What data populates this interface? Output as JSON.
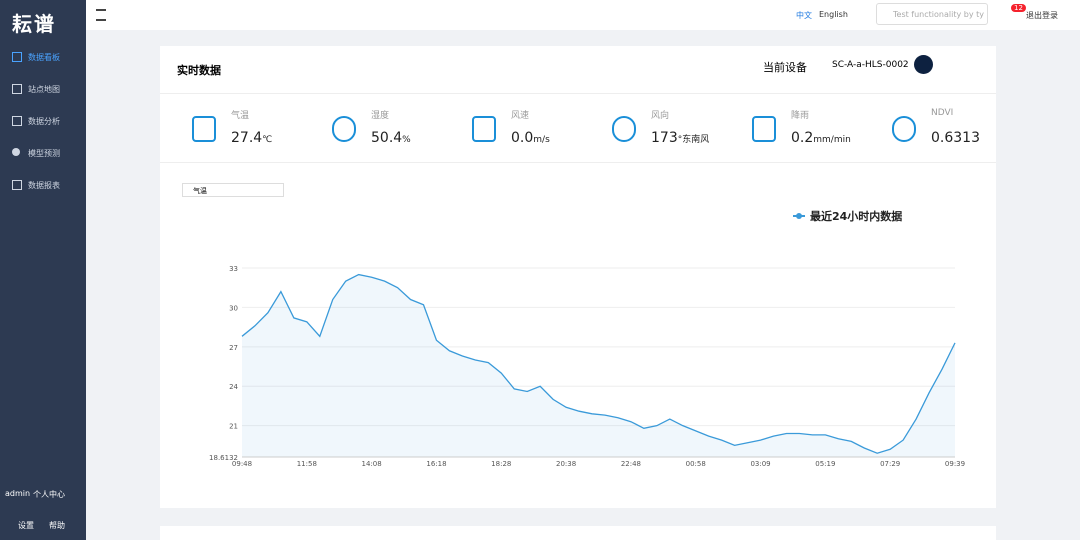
{
  "sidebar": {
    "logo": "耘谱",
    "menu": [
      "数据看板",
      "站点地图",
      "数据分析",
      "模型预测",
      "数据报表"
    ],
    "user": "admin",
    "profile": "个人中心",
    "settings": "设置",
    "help": "帮助"
  },
  "header": {
    "lang_cn": "中文",
    "lang_en": "English",
    "search_placeholder": "Test functionality by ty",
    "badge": "12",
    "logout": "退出登录"
  },
  "card": {
    "title": "实时数据",
    "device_label": "当前设备",
    "device": "SC-A-a-HLS-0002",
    "select": "气温",
    "metrics": [
      {
        "label": "气温",
        "value": "27.4",
        "unit": "℃"
      },
      {
        "label": "湿度",
        "value": "50.4",
        "unit": "%"
      },
      {
        "label": "风速",
        "value": "0.0",
        "unit": "m/s"
      },
      {
        "label": "风向",
        "value": "173",
        "unit": "°东南风"
      },
      {
        "label": "降雨",
        "value": "0.2",
        "unit": "mm/min"
      },
      {
        "label": "NDVI",
        "value": "0.6313",
        "unit": ""
      }
    ]
  },
  "chart_data": {
    "type": "line",
    "categories": [
      "09:48",
      null,
      null,
      null,
      null,
      "11:58",
      null,
      null,
      null,
      null,
      "14:08",
      null,
      null,
      null,
      null,
      "16:18",
      null,
      null,
      null,
      null,
      "18:28",
      null,
      null,
      null,
      null,
      "20:38",
      null,
      null,
      null,
      null,
      "22:48",
      null,
      null,
      null,
      null,
      "00:58",
      null,
      null,
      null,
      null,
      "03:09",
      null,
      null,
      null,
      null,
      "05:19",
      null,
      null,
      null,
      null,
      "07:29",
      null,
      null,
      null,
      null,
      "09:39"
    ],
    "series": [
      {
        "name": "最近24小时内数据",
        "color": "#3a9ad9",
        "values": [
          27.8,
          28.6,
          29.6,
          31.2,
          29.2,
          28.9,
          27.8,
          30.6,
          32.0,
          32.5,
          32.3,
          32.0,
          31.5,
          30.6,
          30.2,
          27.5,
          26.7,
          26.3,
          26.0,
          25.8,
          25.0,
          23.8,
          23.6,
          24.0,
          23.0,
          22.4,
          22.1,
          21.9,
          21.8,
          21.6,
          21.3,
          20.8,
          21.0,
          21.5,
          21.0,
          20.6,
          20.2,
          19.9,
          19.5,
          19.7,
          19.9,
          20.2,
          20.4,
          20.4,
          20.3,
          20.3,
          20.0,
          19.8,
          19.3,
          18.9,
          19.2,
          19.9,
          21.5,
          23.5,
          25.3,
          27.3
        ]
      }
    ],
    "ylim": [
      18.6132,
      33
    ],
    "yticks": [
      18.6132,
      21,
      24,
      27,
      30,
      33
    ],
    "grid": true,
    "legend": "top-right"
  }
}
